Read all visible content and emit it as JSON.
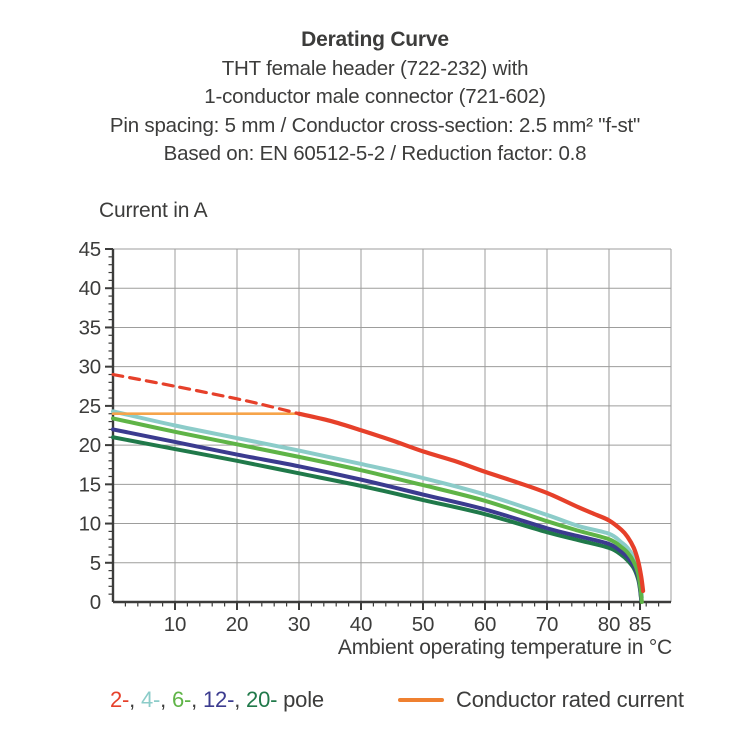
{
  "title_block": {
    "line1": "Derating Curve",
    "line2": "THT female header  (722-232) with",
    "line3": "1-conductor male connector (721-602)",
    "line4": "Pin spacing: 5 mm / Conductor cross-section: 2.5 mm² \"f-st\"",
    "line5": "Based on: EN 60512-5-2 / Reduction factor: 0.8"
  },
  "colors": {
    "text": "#3C3C3B",
    "axis": "#3C3C3B",
    "grid": "#9D9D9C",
    "background": "#FFFFFF"
  },
  "legend": {
    "poles": [
      {
        "label": "2-",
        "color": "#E6402A"
      },
      {
        "label": "4-",
        "color": "#8CCCC9"
      },
      {
        "label": "6-",
        "color": "#5FB447"
      },
      {
        "label": "12-",
        "color": "#3B3B8F"
      },
      {
        "label": "20-",
        "color": "#20794A"
      }
    ],
    "separator": ", ",
    "pole_suffix": " pole",
    "rated_label": "Conductor rated current",
    "rated_color": "#EF8030"
  },
  "chart_data": {
    "type": "line",
    "title": "Derating Curve",
    "xlabel": "Ambient operating temperature in °C",
    "ylabel": "Current in A",
    "xlim": [
      0,
      90
    ],
    "ylim": [
      0,
      45
    ],
    "grid": true,
    "x_gridlines": [
      10,
      20,
      30,
      40,
      50,
      60,
      70,
      80
    ],
    "x_major_ticks": [
      10,
      20,
      30,
      40,
      50,
      60,
      70,
      80,
      85
    ],
    "x_minor_step": 2,
    "y_major_ticks": [
      0,
      5,
      10,
      15,
      20,
      25,
      30,
      35,
      40,
      45
    ],
    "y_minor_step": 1,
    "series": [
      {
        "name": "4-pole",
        "color": "#8CCCC9",
        "width": 4,
        "dash": null,
        "points": [
          [
            0,
            24.3
          ],
          [
            10,
            22.5
          ],
          [
            20,
            20.9
          ],
          [
            30,
            19.3
          ],
          [
            40,
            17.6
          ],
          [
            50,
            15.8
          ],
          [
            60,
            13.7
          ],
          [
            70,
            11.1
          ],
          [
            75,
            9.7
          ],
          [
            80,
            8.7
          ],
          [
            82,
            7.6
          ],
          [
            83,
            6.9
          ],
          [
            84,
            5.7
          ],
          [
            84.7,
            4.2
          ],
          [
            85.1,
            2.4
          ],
          [
            85.3,
            0.6
          ]
        ]
      },
      {
        "name": "20-pole",
        "color": "#20794A",
        "width": 4,
        "dash": null,
        "points": [
          [
            0,
            21.0
          ],
          [
            10,
            19.5
          ],
          [
            20,
            18.0
          ],
          [
            30,
            16.4
          ],
          [
            40,
            14.8
          ],
          [
            50,
            13.0
          ],
          [
            60,
            11.2
          ],
          [
            70,
            8.9
          ],
          [
            75,
            7.9
          ],
          [
            80,
            6.9
          ],
          [
            82,
            6.0
          ],
          [
            83,
            5.3
          ],
          [
            84,
            4.3
          ],
          [
            84.7,
            2.9
          ],
          [
            85.0,
            1.6
          ],
          [
            85.2,
            0.2
          ]
        ]
      },
      {
        "name": "12-pole",
        "color": "#3B3B8F",
        "width": 4,
        "dash": null,
        "points": [
          [
            0,
            22.0
          ],
          [
            10,
            20.4
          ],
          [
            20,
            18.8
          ],
          [
            30,
            17.3
          ],
          [
            40,
            15.6
          ],
          [
            50,
            13.7
          ],
          [
            60,
            11.8
          ],
          [
            70,
            9.4
          ],
          [
            75,
            8.4
          ],
          [
            80,
            7.4
          ],
          [
            82,
            6.4
          ],
          [
            83,
            5.7
          ],
          [
            84,
            4.6
          ],
          [
            84.7,
            3.2
          ],
          [
            85.0,
            1.8
          ],
          [
            85.2,
            0.3
          ]
        ]
      },
      {
        "name": "6-pole",
        "color": "#5FB447",
        "width": 4,
        "dash": null,
        "points": [
          [
            0,
            23.4
          ],
          [
            10,
            21.7
          ],
          [
            20,
            20.1
          ],
          [
            30,
            18.5
          ],
          [
            40,
            16.8
          ],
          [
            50,
            14.9
          ],
          [
            60,
            12.9
          ],
          [
            70,
            10.3
          ],
          [
            75,
            9.1
          ],
          [
            80,
            8.0
          ],
          [
            82,
            7.0
          ],
          [
            83,
            6.3
          ],
          [
            84,
            5.1
          ],
          [
            84.7,
            3.6
          ],
          [
            85.1,
            1.6
          ],
          [
            85.3,
            0.0
          ]
        ]
      },
      {
        "name": "conductor-rated-current",
        "color": "#F6A44A",
        "width": 2.6,
        "dash": null,
        "points": [
          [
            0,
            24
          ],
          [
            30,
            24
          ]
        ]
      },
      {
        "name": "2-pole-dashed",
        "color": "#E6402A",
        "width": 3.2,
        "dash": "10 7",
        "points": [
          [
            0,
            29.0
          ],
          [
            10,
            27.5
          ],
          [
            20,
            25.9
          ],
          [
            25,
            25.0
          ],
          [
            30,
            24.0
          ]
        ]
      },
      {
        "name": "2-pole",
        "color": "#E6402A",
        "width": 4.2,
        "dash": null,
        "points": [
          [
            30,
            24.0
          ],
          [
            35,
            23.1
          ],
          [
            40,
            21.9
          ],
          [
            45,
            20.6
          ],
          [
            50,
            19.2
          ],
          [
            55,
            18.0
          ],
          [
            60,
            16.6
          ],
          [
            65,
            15.3
          ],
          [
            70,
            13.9
          ],
          [
            75,
            12.1
          ],
          [
            78,
            11.1
          ],
          [
            80,
            10.4
          ],
          [
            82,
            9.2
          ],
          [
            83,
            8.3
          ],
          [
            84,
            6.9
          ],
          [
            84.7,
            5.2
          ],
          [
            85.2,
            3.2
          ],
          [
            85.5,
            1.4
          ]
        ]
      }
    ]
  }
}
